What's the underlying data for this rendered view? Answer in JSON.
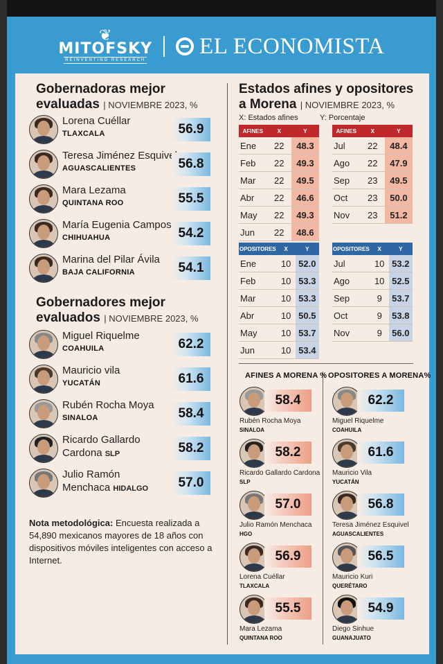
{
  "header": {
    "mitofsky": "MITOFSKY",
    "mitofsky_tagline": "REINVENTING RESEARCH",
    "economista": "EL ECONOMISTA"
  },
  "gobernadoras": {
    "title_line1": "Gobernadoras mejor",
    "title_line2": "evaluadas",
    "subtitle": "NOVIEMBRE 2023, %",
    "people": [
      {
        "name": "Lorena Cuéllar",
        "state": "TLAXCALA",
        "score": "56.9"
      },
      {
        "name": "Teresa Jiménez Esquivel",
        "state": "AGUASCALIENTES",
        "score": "56.8"
      },
      {
        "name": "Mara Lezama",
        "state": "QUINTANA ROO",
        "score": "55.5"
      },
      {
        "name": "María Eugenia Campos",
        "state": "CHIHUAHUA",
        "score": "54.2"
      },
      {
        "name": "Marina del Pilar Ávila",
        "state": "BAJA CALIFORNIA",
        "score": "54.1"
      }
    ]
  },
  "gobernadores": {
    "title_line1": "Gobernadores mejor",
    "title_line2": "evaluados",
    "subtitle": "NOVIEMBRE 2023, %",
    "people": [
      {
        "name": "Miguel Riquelme",
        "state": "COAHUILA",
        "score": "62.2"
      },
      {
        "name": "Mauricio vila",
        "state": "YUCATÁN",
        "score": "61.6"
      },
      {
        "name": "Rubén Rocha Moya",
        "state": "SINALOA",
        "score": "58.4"
      },
      {
        "name": "Ricardo Gallardo",
        "name2": "Cardona",
        "state": "SLP",
        "score": "58.2"
      },
      {
        "name": "Julio Ramón",
        "name2": "Menchaca",
        "state": "HIDALGO",
        "score": "57.0"
      }
    ]
  },
  "note": {
    "label": "Nota metodológica:",
    "text": " Encuesta realizada a 54,890 mexicanos mayores de 18 años con dispositivos móviles inteligentes con acceso a Internet."
  },
  "estados": {
    "title_line1": "Estados afines y opositores",
    "title_line2": "a Morena",
    "subtitle": "NOVIEMBRE 2023, %",
    "x_label": "X: Estados afines",
    "y_label": "Y: Porcentaje",
    "afines_header": [
      "AFINES",
      "X",
      "Y"
    ],
    "opositores_header": [
      "OPOSITORES",
      "X",
      "Y"
    ],
    "afines_left": [
      [
        "Ene",
        "22",
        "48.3"
      ],
      [
        "Feb",
        "22",
        "49.3"
      ],
      [
        "Mar",
        "22",
        "49.5"
      ],
      [
        "Abr",
        "22",
        "46.6"
      ],
      [
        "May",
        "22",
        "49.3"
      ],
      [
        "Jun",
        "22",
        "48.6"
      ]
    ],
    "afines_right": [
      [
        "Jul",
        "22",
        "48.4"
      ],
      [
        "Ago",
        "22",
        "47.9"
      ],
      [
        "Sep",
        "23",
        "49.5"
      ],
      [
        "Oct",
        "23",
        "50.0"
      ],
      [
        "Nov",
        "23",
        "51.2"
      ]
    ],
    "opositores_left": [
      [
        "Ene",
        "10",
        "52.0"
      ],
      [
        "Feb",
        "10",
        "53.3"
      ],
      [
        "Mar",
        "10",
        "53.3"
      ],
      [
        "Abr",
        "10",
        "50.5"
      ],
      [
        "May",
        "10",
        "53.7"
      ],
      [
        "Jun",
        "10",
        "53.4"
      ]
    ],
    "opositores_right": [
      [
        "Jul",
        "10",
        "53.2"
      ],
      [
        "Ago",
        "10",
        "52.5"
      ],
      [
        "Sep",
        "9",
        "53.7"
      ],
      [
        "Oct",
        "9",
        "53.8"
      ],
      [
        "Nov",
        "9",
        "56.0"
      ]
    ]
  },
  "afines_morena": {
    "title": "AFINES A MORENA %",
    "people": [
      {
        "name": "Rubén Rocha Moya",
        "state": "SINALOA",
        "score": "58.4"
      },
      {
        "name": "Ricardo Gallardo Cardona",
        "state": "SLP",
        "score": "58.2"
      },
      {
        "name": "Julio Ramón Menchaca",
        "state": "HGO",
        "score": "57.0"
      },
      {
        "name": "Lorena Cuéllar",
        "state": "TLAXCALA",
        "score": "56.9"
      },
      {
        "name": "Mara Lezama",
        "state": "QUINTANA ROO",
        "score": "55.5"
      }
    ]
  },
  "opositores_morena": {
    "title": "OPOSITORES A MORENA%",
    "people": [
      {
        "name": "Miguel Riquelme",
        "state": "COAHUILA",
        "score": "62.2"
      },
      {
        "name": "Mauricio Vila",
        "state": "YUCATÁN",
        "score": "61.6"
      },
      {
        "name": "Teresa Jiménez Esquivel",
        "state": "AGUASCALIENTES",
        "score": "56.8"
      },
      {
        "name": "Mauricio Kuri",
        "state": "QUERÉTARO",
        "score": "56.5"
      },
      {
        "name": "Diego Sinhue",
        "state": "GUANAJUATO",
        "score": "54.9"
      }
    ]
  }
}
